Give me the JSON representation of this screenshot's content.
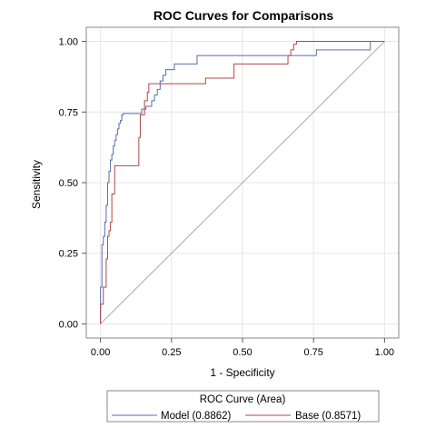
{
  "chart_data": {
    "type": "line",
    "title": "ROC Curves for Comparisons",
    "xlabel": "1 - Specificity",
    "ylabel": "Sensitivity",
    "xlim": [
      -0.05,
      1.05
    ],
    "ylim": [
      -0.05,
      1.05
    ],
    "x_ticks": [
      0.0,
      0.25,
      0.5,
      0.75,
      1.0
    ],
    "x_tick_labels": [
      "0.00",
      "0.25",
      "0.50",
      "0.75",
      "1.00"
    ],
    "y_ticks": [
      0.0,
      0.25,
      0.5,
      0.75,
      1.0
    ],
    "y_tick_labels": [
      "0.00",
      "0.25",
      "0.50",
      "0.75",
      "1.00"
    ],
    "grid": true,
    "reference_line": {
      "from": [
        0,
        0
      ],
      "to": [
        1,
        1
      ],
      "color": "#a9a9a9"
    },
    "legend": {
      "title": "ROC Curve (Area)",
      "placement": "bottom",
      "entries": [
        "Model  (0.8862)",
        "Base  (0.8571)"
      ]
    },
    "series": [
      {
        "name": "Model  (0.8862)",
        "color": "#5a6cb0",
        "x": [
          0.0,
          0.0,
          0.005,
          0.005,
          0.01,
          0.01,
          0.015,
          0.015,
          0.02,
          0.02,
          0.025,
          0.025,
          0.03,
          0.03,
          0.035,
          0.035,
          0.04,
          0.04,
          0.045,
          0.045,
          0.05,
          0.05,
          0.055,
          0.055,
          0.06,
          0.06,
          0.065,
          0.065,
          0.07,
          0.07,
          0.075,
          0.075,
          0.08,
          0.08,
          0.145,
          0.145,
          0.16,
          0.16,
          0.18,
          0.18,
          0.19,
          0.19,
          0.2,
          0.2,
          0.21,
          0.21,
          0.22,
          0.22,
          0.23,
          0.23,
          0.26,
          0.26,
          0.34,
          0.34,
          0.66,
          0.66,
          0.76,
          0.76,
          0.95,
          0.95,
          1.0
        ],
        "y": [
          0.0,
          0.13,
          0.13,
          0.28,
          0.28,
          0.31,
          0.31,
          0.36,
          0.36,
          0.42,
          0.42,
          0.5,
          0.5,
          0.54,
          0.54,
          0.58,
          0.58,
          0.6,
          0.6,
          0.63,
          0.63,
          0.65,
          0.65,
          0.67,
          0.67,
          0.69,
          0.69,
          0.71,
          0.71,
          0.72,
          0.72,
          0.74,
          0.74,
          0.745,
          0.745,
          0.76,
          0.76,
          0.77,
          0.77,
          0.79,
          0.79,
          0.81,
          0.81,
          0.83,
          0.83,
          0.86,
          0.86,
          0.88,
          0.88,
          0.9,
          0.9,
          0.92,
          0.92,
          0.95,
          0.95,
          0.95,
          0.95,
          0.97,
          0.97,
          1.0,
          1.0
        ]
      },
      {
        "name": "Base  (0.8571)",
        "color": "#b04848",
        "x": [
          0.0,
          0.0,
          0.01,
          0.01,
          0.02,
          0.02,
          0.025,
          0.025,
          0.03,
          0.03,
          0.035,
          0.035,
          0.04,
          0.04,
          0.05,
          0.05,
          0.135,
          0.135,
          0.14,
          0.14,
          0.155,
          0.155,
          0.165,
          0.165,
          0.17,
          0.17,
          0.25,
          0.25,
          0.37,
          0.37,
          0.47,
          0.47,
          0.66,
          0.66,
          0.67,
          0.67,
          0.68,
          0.68,
          0.69,
          0.69,
          0.96,
          0.96,
          1.0
        ],
        "y": [
          0.0,
          0.07,
          0.07,
          0.13,
          0.13,
          0.23,
          0.23,
          0.31,
          0.31,
          0.33,
          0.33,
          0.36,
          0.36,
          0.46,
          0.46,
          0.56,
          0.56,
          0.66,
          0.66,
          0.74,
          0.74,
          0.79,
          0.79,
          0.82,
          0.82,
          0.85,
          0.85,
          0.85,
          0.85,
          0.87,
          0.87,
          0.92,
          0.92,
          0.95,
          0.95,
          0.97,
          0.97,
          0.99,
          0.99,
          1.0,
          1.0,
          1.0,
          1.0
        ]
      }
    ]
  }
}
